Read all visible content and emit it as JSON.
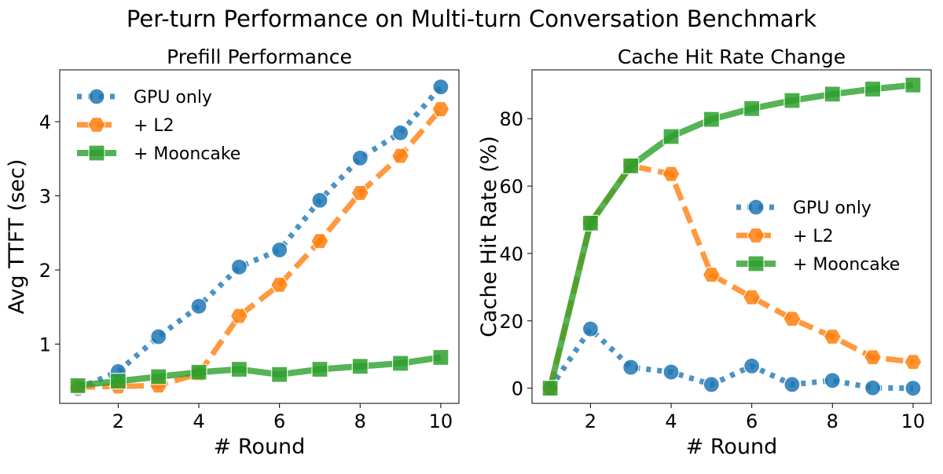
{
  "figure_title": "Per-turn Performance on Multi-turn Conversation Benchmark",
  "colors": {
    "gpu_only": "#1f77b4",
    "l2": "#ff7f0e",
    "mooncake": "#2ca02c"
  },
  "legend_labels": [
    "GPU only",
    "+ L2",
    "+ Mooncake"
  ],
  "chart_data": [
    {
      "type": "line",
      "title": "Prefill Performance",
      "xlabel": "# Round",
      "ylabel": "Avg TTFT (sec)",
      "xlim": [
        0.55,
        10.45
      ],
      "ylim": [
        0.2,
        4.7
      ],
      "xticks": [
        2,
        4,
        6,
        8,
        10
      ],
      "yticks": [
        1,
        2,
        3,
        4
      ],
      "grid": false,
      "legend": "top-left",
      "x": [
        1,
        2,
        3,
        4,
        5,
        6,
        7,
        8,
        9,
        10
      ],
      "series": [
        {
          "name": "GPU only",
          "values": [
            0.4,
            0.63,
            1.1,
            1.51,
            2.04,
            2.27,
            2.94,
            3.51,
            3.85,
            4.47
          ]
        },
        {
          "name": "+ L2",
          "values": [
            0.42,
            0.43,
            0.44,
            0.6,
            1.38,
            1.8,
            2.39,
            3.04,
            3.54,
            4.17
          ]
        },
        {
          "name": "+ Mooncake",
          "values": [
            0.44,
            0.5,
            0.56,
            0.62,
            0.66,
            0.59,
            0.66,
            0.7,
            0.74,
            0.82
          ]
        }
      ]
    },
    {
      "type": "line",
      "title": "Cache Hit Rate Change",
      "xlabel": "# Round",
      "ylabel": "Cache Hit Rate (%)",
      "xlim": [
        0.55,
        10.45
      ],
      "ylim": [
        -4.5,
        94.5
      ],
      "xticks": [
        2,
        4,
        6,
        8,
        10
      ],
      "yticks": [
        0,
        20,
        40,
        60,
        80
      ],
      "grid": false,
      "legend": "center-right",
      "x": [
        1,
        2,
        3,
        4,
        5,
        6,
        7,
        8,
        9,
        10
      ],
      "series": [
        {
          "name": "GPU only",
          "values": [
            0,
            17.6,
            6.2,
            4.8,
            1.1,
            6.6,
            1.1,
            2.3,
            0.1,
            0
          ]
        },
        {
          "name": "+ L2",
          "values": [
            0,
            49,
            66,
            63.6,
            33.7,
            27,
            20.6,
            15.3,
            9.2,
            7.8
          ]
        },
        {
          "name": "+ Mooncake",
          "values": [
            0,
            49,
            66,
            74.7,
            79.8,
            83,
            85.4,
            87.3,
            88.8,
            90
          ]
        }
      ]
    }
  ]
}
